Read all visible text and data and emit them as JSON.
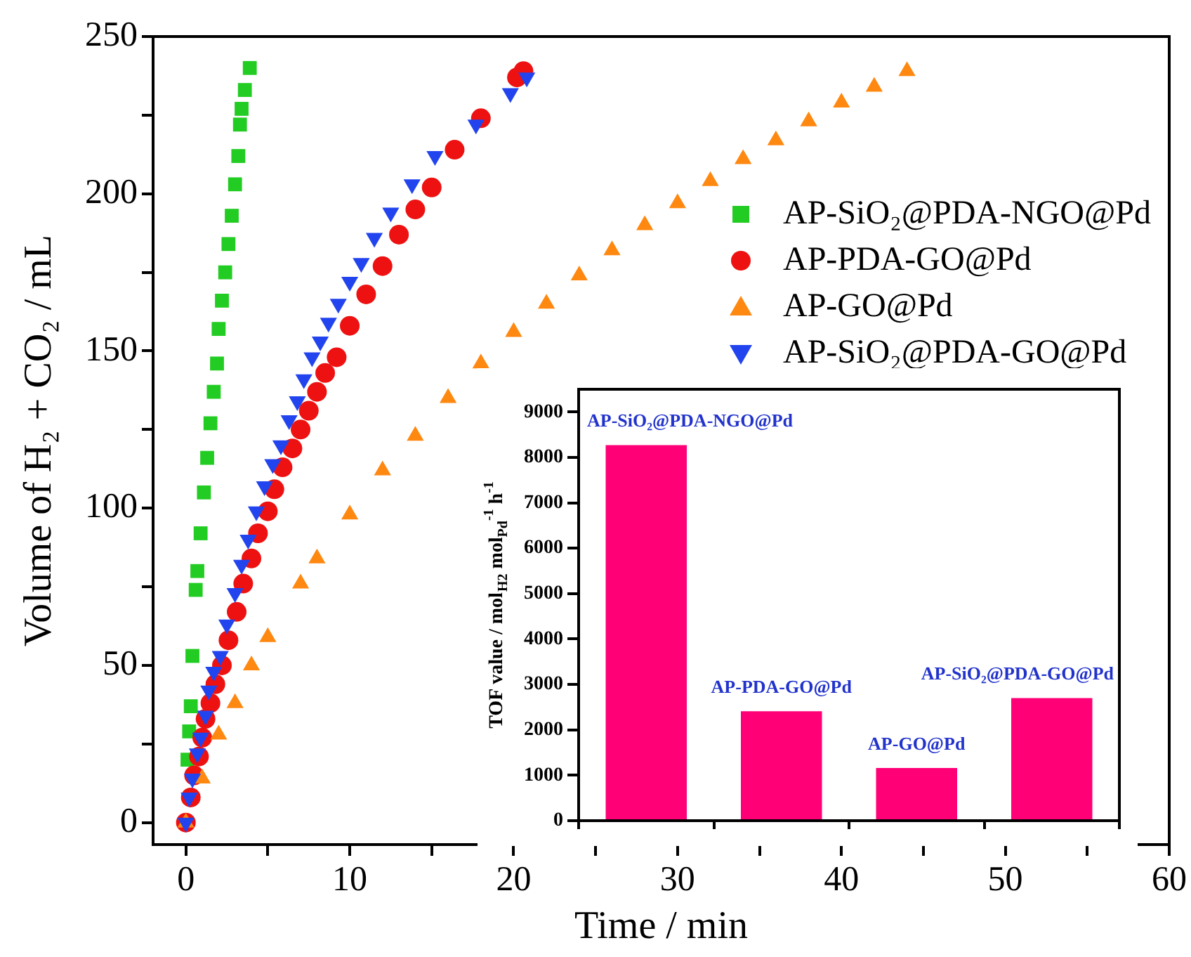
{
  "chart_data": [
    {
      "type": "scatter",
      "xlabel": "Time / min",
      "ylabel": "Volume of H₂ + CO₂ / mL",
      "xlim": [
        -2,
        60
      ],
      "ylim": [
        -7,
        250
      ],
      "xticks": [
        0,
        {
          "value": 5,
          "label": null
        },
        10,
        {
          "value": 15,
          "label": null
        },
        20,
        {
          "value": 25,
          "label": null
        },
        30,
        {
          "value": 35,
          "label": null
        },
        40,
        {
          "value": 45,
          "label": null
        },
        50,
        {
          "value": 55,
          "label": null
        },
        60
      ],
      "yticks": [
        0,
        {
          "value": 25,
          "label": null
        },
        50,
        {
          "value": 75,
          "label": null
        },
        100,
        {
          "value": 125,
          "label": null
        },
        150,
        {
          "value": 175,
          "label": null
        },
        200,
        {
          "value": 225,
          "label": null
        },
        250
      ],
      "grid": false,
      "legend": "right",
      "series": [
        {
          "name": "AP-SiO₂@PDA-NGO@Pd",
          "color": "#22cc22",
          "marker": "square",
          "x": [
            0.1,
            0.2,
            0.3,
            0.4,
            0.6,
            0.7,
            0.9,
            1.1,
            1.3,
            1.5,
            1.7,
            1.9,
            2.0,
            2.2,
            2.4,
            2.6,
            2.8,
            3.0,
            3.2,
            3.3,
            3.4,
            3.6,
            3.9
          ],
          "values": [
            20,
            29,
            37,
            53,
            74,
            80,
            92,
            105,
            116,
            127,
            137,
            146,
            157,
            166,
            175,
            184,
            193,
            203,
            212,
            222,
            227,
            233,
            240
          ]
        },
        {
          "name": "AP-PDA-GO@Pd",
          "color": "#ee1111",
          "marker": "circle",
          "x": [
            0,
            0.3,
            0.5,
            0.8,
            1.0,
            1.2,
            1.5,
            1.8,
            2.2,
            2.6,
            3.1,
            3.5,
            4.0,
            4.4,
            5.0,
            5.4,
            5.9,
            6.5,
            7.0,
            7.5,
            8.0,
            8.5,
            9.2,
            10,
            11,
            12,
            13,
            14,
            15,
            16.4,
            18,
            20.2,
            20.6
          ],
          "values": [
            0,
            8,
            15,
            21,
            27,
            33,
            38,
            44,
            50,
            58,
            67,
            76,
            84,
            92,
            99,
            106,
            113,
            119,
            125,
            131,
            137,
            143,
            148,
            158,
            168,
            177,
            187,
            195,
            202,
            214,
            224,
            237,
            239
          ]
        },
        {
          "name": "AP-GO@Pd",
          "color": "#ff8811",
          "marker": "triangle",
          "x": [
            0,
            1,
            2,
            3,
            4,
            5,
            7,
            8,
            10,
            12,
            14,
            16,
            18,
            20,
            22,
            24,
            26,
            28,
            30,
            32,
            34,
            36,
            38,
            40,
            42,
            44
          ],
          "values": [
            0,
            14,
            28,
            38,
            50,
            59,
            76,
            84,
            98,
            112,
            123,
            135,
            146,
            156,
            165,
            174,
            182,
            190,
            197,
            204,
            211,
            217,
            223,
            229,
            234,
            239
          ]
        },
        {
          "name": "AP-SiO₂@PDA-GO@Pd",
          "color": "#2244ee",
          "marker": "triangle",
          "x": [
            0,
            0.2,
            0.4,
            0.7,
            0.9,
            1.2,
            1.4,
            1.7,
            2.1,
            2.5,
            3.0,
            3.4,
            3.8,
            4.3,
            4.8,
            5.3,
            5.8,
            6.3,
            6.8,
            7.2,
            7.7,
            8.2,
            8.7,
            9.3,
            10,
            10.7,
            11.5,
            12.5,
            13.8,
            15.2,
            17.7,
            19.8,
            20.8
          ],
          "values": [
            0,
            8,
            14,
            22,
            27,
            34,
            42,
            48,
            53,
            63,
            73,
            82,
            90,
            99,
            107,
            114,
            120,
            128,
            134,
            141,
            148,
            153,
            159,
            165,
            172,
            178,
            186,
            194,
            203,
            212,
            222,
            232,
            237
          ]
        }
      ]
    },
    {
      "type": "bar",
      "ylabel": "TOF value / mol$_{H2}$ mol$_{Pd}$$^{-1}$ h$^{-1}$",
      "categories": [
        "AP-SiO₂@PDA-NGO@Pd",
        "AP-PDA-GO@Pd",
        "AP-GO@Pd",
        "AP-SiO₂@PDA-GO@Pd"
      ],
      "values": [
        8270,
        2410,
        1160,
        2700
      ],
      "color": "#ff0077",
      "ylim": [
        0,
        9500
      ],
      "yticks": [
        0,
        1000,
        2000,
        3000,
        4000,
        5000,
        6000,
        7000,
        8000,
        9000
      ],
      "grid": false,
      "tick_labels": "y"
    }
  ]
}
